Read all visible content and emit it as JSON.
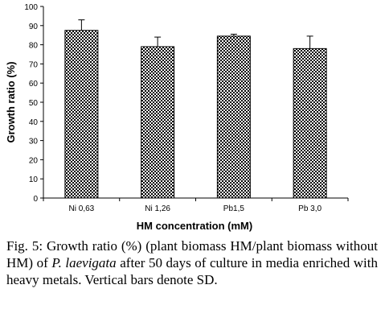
{
  "chart_data": {
    "type": "bar",
    "categories": [
      "Ni 0,63",
      "Ni 1,26",
      "Pb1,5",
      "Pb 3,0"
    ],
    "series": [
      {
        "values": [
          87.5,
          79,
          84.5,
          78
        ],
        "error": [
          5.5,
          5,
          1,
          6.5
        ]
      }
    ],
    "xlabel": "HM concentration (mM)",
    "ylabel": "Growth ratio (%)",
    "ylim": [
      0,
      100
    ],
    "yticks": [
      0,
      10,
      20,
      30,
      40,
      50,
      60,
      70,
      80,
      90,
      100
    ],
    "grid": false,
    "error_bars": true,
    "bar_pattern": "checkered"
  },
  "caption": {
    "prefix": "Fig. 5: Growth ratio (%) (plant biomass HM/plant biomass without HM) of ",
    "species": "P. laevigata",
    "suffix": " after 50 days of culture in media enriched with heavy metals. Vertical bars denote SD."
  }
}
